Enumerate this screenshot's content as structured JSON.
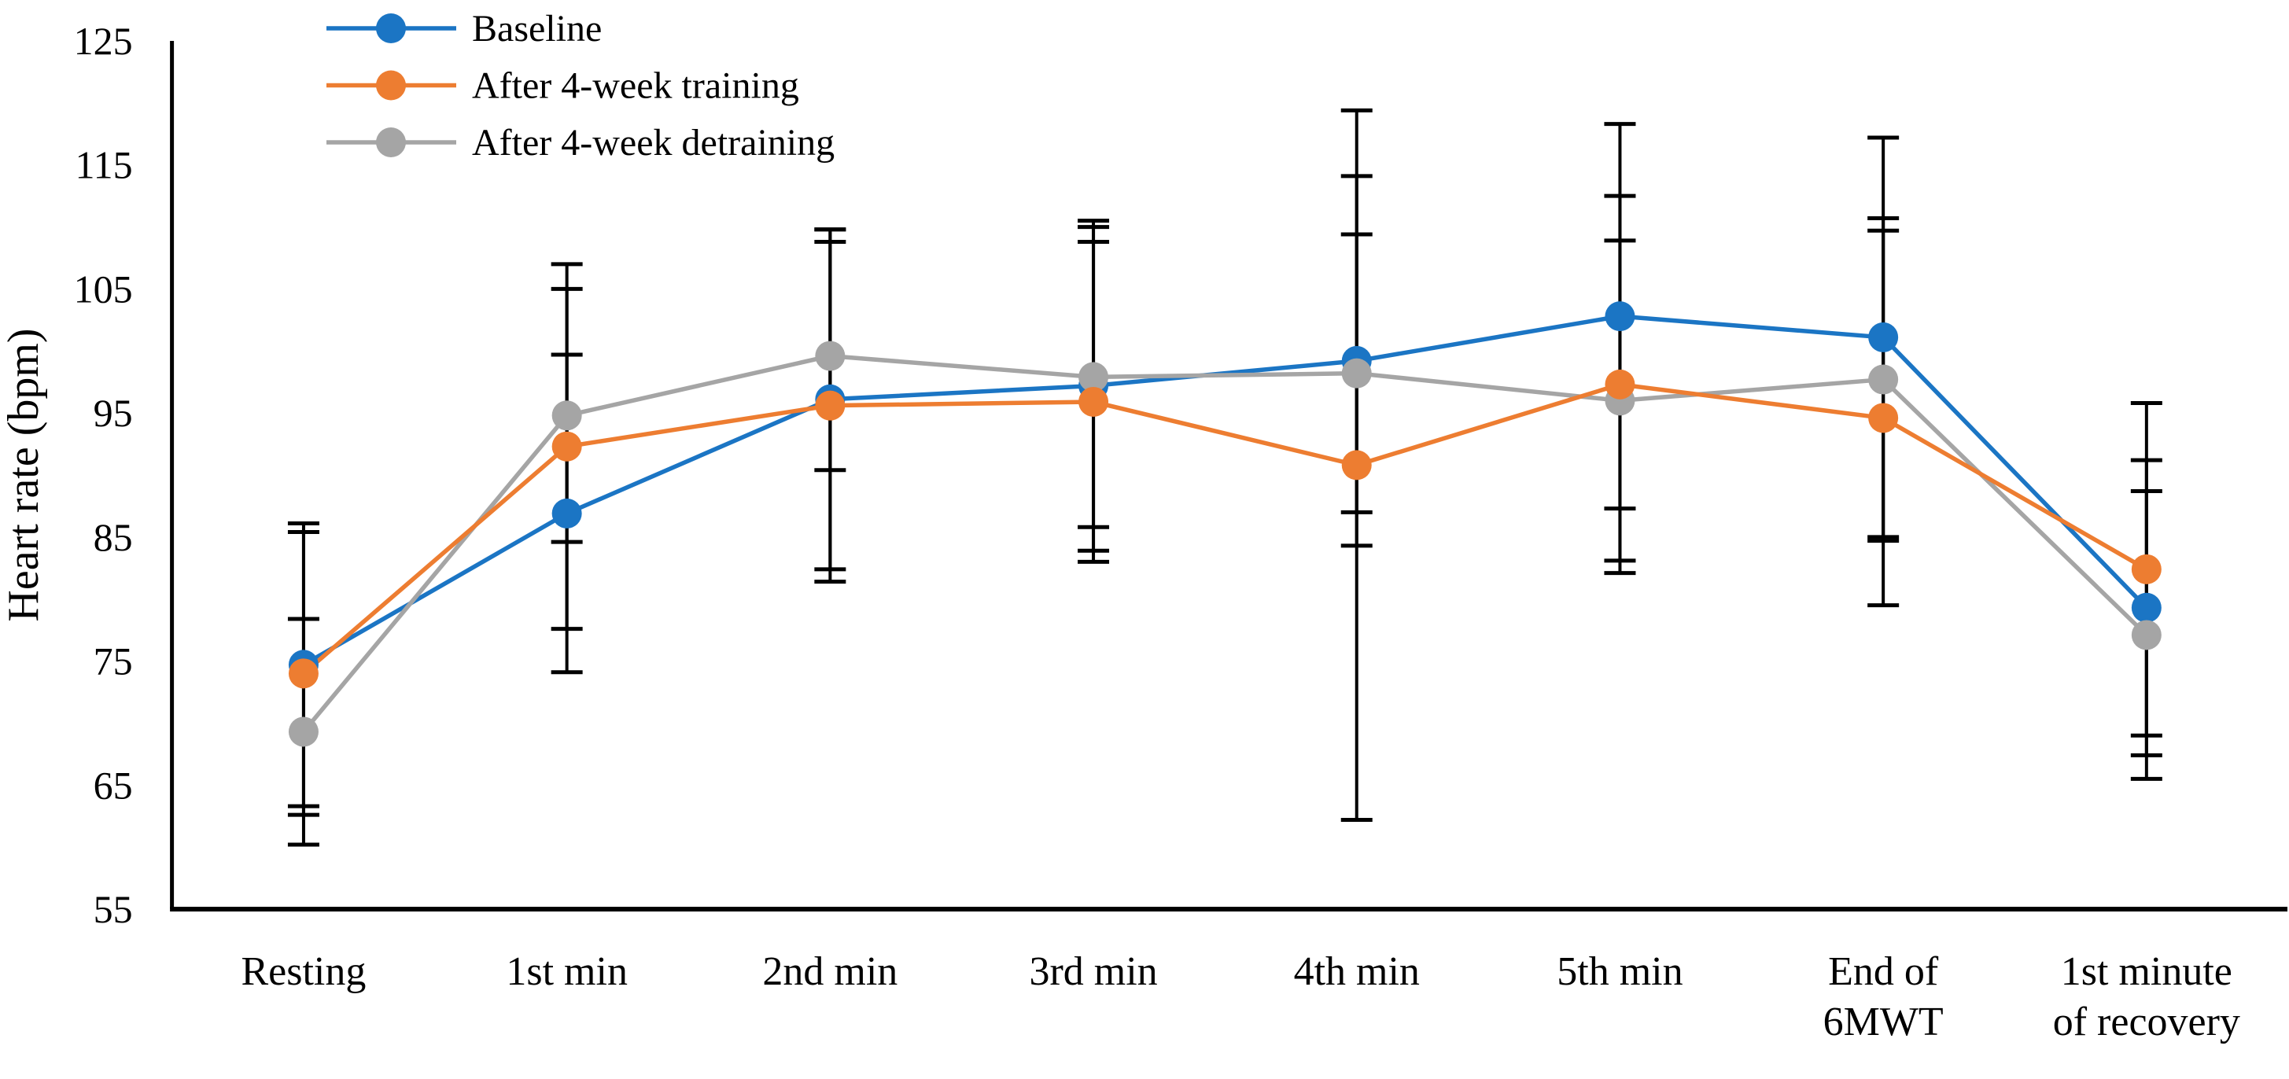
{
  "figure": {
    "background": "#ffffff",
    "axis_color": "#000000",
    "text_color": "#000000"
  },
  "chart_data": {
    "type": "line",
    "title": "",
    "xlabel": "",
    "ylabel": "Heart rate (bpm)",
    "ylim": [
      55,
      125
    ],
    "yticks": [
      55,
      65,
      75,
      85,
      95,
      105,
      115,
      125
    ],
    "grid": false,
    "legend_position": "top-left",
    "error_bars": true,
    "categories": [
      "Resting",
      "1st min",
      "2nd min",
      "3rd min",
      "4th min",
      "5th min",
      "End of 6MWT",
      "1st minute of recovery"
    ],
    "category_label_lines": [
      [
        "Resting"
      ],
      [
        "1st min"
      ],
      [
        "2nd min"
      ],
      [
        "3rd min"
      ],
      [
        "4th min"
      ],
      [
        "5th min"
      ],
      [
        "End of",
        "6MWT"
      ],
      [
        "1st minute",
        "of recovery"
      ]
    ],
    "series": [
      {
        "name": "Baseline",
        "color": "#1B75C4",
        "values": [
          74.7,
          86.9,
          96.1,
          97.2,
          99.2,
          102.8,
          101.1,
          79.3
        ],
        "errors": [
          11.4,
          12.8,
          13.7,
          13.3,
          14.9,
          15.5,
          16.1,
          11.9
        ]
      },
      {
        "name": "After 4-week training",
        "color": "#ED7D31",
        "values": [
          74.0,
          92.3,
          95.6,
          95.9,
          90.8,
          97.3,
          94.6,
          82.4
        ],
        "errors": [
          11.4,
          14.7,
          14.2,
          12.9,
          28.6,
          15.2,
          15.1,
          13.4
        ]
      },
      {
        "name": "After 4-week detraining",
        "color": "#A5A5A5",
        "values": [
          69.3,
          94.8,
          99.6,
          97.9,
          98.2,
          96.0,
          97.7,
          77.1
        ],
        "errors": [
          9.1,
          10.2,
          9.2,
          12.1,
          11.2,
          12.9,
          13.0,
          11.6
        ]
      }
    ],
    "draw_order": [
      0,
      2,
      1
    ]
  }
}
